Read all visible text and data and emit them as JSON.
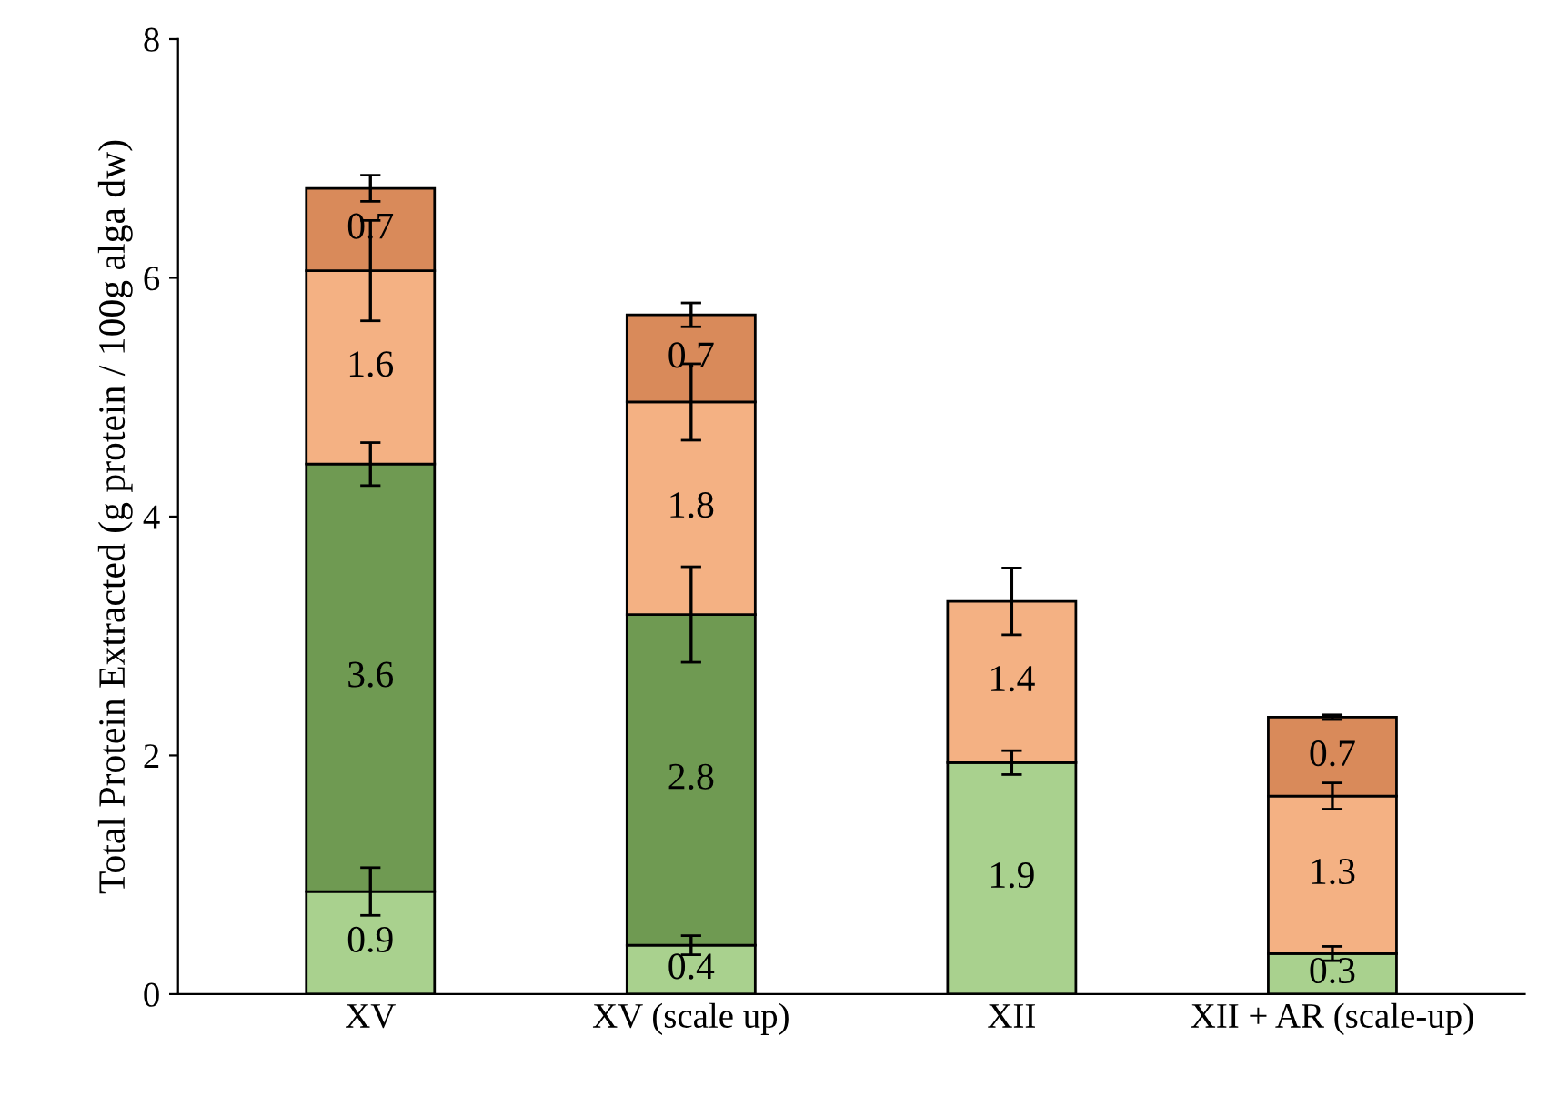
{
  "chart_data": {
    "type": "bar",
    "stacked": true,
    "ylabel": "Total Protein Extracted (g protein / 100g alga dw)",
    "categories": [
      "XV",
      "XV (scale up)",
      "XII",
      "XII + AR (scale-up)"
    ],
    "ylim": [
      0,
      8
    ],
    "yticks": [
      0,
      2,
      4,
      6,
      8
    ],
    "grid": false,
    "legend": false,
    "series": [
      {
        "color": "#a9d18e",
        "values": [
          0.86,
          0.41,
          1.94,
          0.34
        ],
        "errors": [
          0.2,
          0.08,
          0.1,
          0.06
        ],
        "value_labels": [
          "0.9",
          "0.4",
          "1.9",
          "0.3"
        ]
      },
      {
        "color": "#6f9a52",
        "values": [
          3.58,
          2.77,
          null,
          null
        ],
        "errors": [
          0.18,
          0.4,
          null,
          null
        ],
        "value_labels": [
          "3.6",
          "2.8",
          null,
          null
        ]
      },
      {
        "color": "#f4b183",
        "values": [
          1.62,
          1.78,
          1.35,
          1.32
        ],
        "errors": [
          0.42,
          0.32,
          0.28,
          0.11
        ],
        "value_labels": [
          "1.6",
          "1.8",
          "1.4",
          "1.3"
        ]
      },
      {
        "color": "#d98a5a",
        "values": [
          0.69,
          0.73,
          null,
          0.66
        ],
        "errors": [
          0.11,
          0.1,
          null,
          0.02
        ],
        "value_labels": [
          "0.7",
          "0.7",
          null,
          "0.7"
        ]
      }
    ]
  }
}
